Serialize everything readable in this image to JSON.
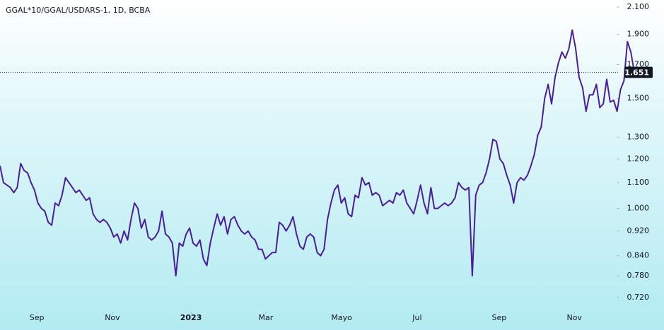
{
  "chart_data": {
    "type": "line",
    "title": "GGAL*10/GGAL/USDARS-1, 1D, BCBA",
    "log_scale": true,
    "grid": false,
    "current_price": 1.651,
    "ylim": [
      0.687,
      2.156
    ],
    "yticks": [
      {
        "value": 2.1,
        "label": "2.100"
      },
      {
        "value": 1.9,
        "label": "1.900"
      },
      {
        "value": 1.7,
        "label": "1.700"
      },
      {
        "value": 1.5,
        "label": "1.500"
      },
      {
        "value": 1.3,
        "label": "1.300"
      },
      {
        "value": 1.2,
        "label": "1.200"
      },
      {
        "value": 1.1,
        "label": "1.100"
      },
      {
        "value": 1.0,
        "label": "1.000"
      },
      {
        "value": 0.92,
        "label": "0.920"
      },
      {
        "value": 0.84,
        "label": "0.840"
      },
      {
        "value": 0.78,
        "label": "0.780"
      },
      {
        "value": 0.72,
        "label": "0.720"
      }
    ],
    "xlim": [
      0,
      176
    ],
    "xticks": [
      {
        "value": 10.7,
        "label": "Sep"
      },
      {
        "value": 32.6,
        "label": "Nov"
      },
      {
        "value": 55.4,
        "label": "2023"
      },
      {
        "value": 77.1,
        "label": "Mar"
      },
      {
        "value": 99.1,
        "label": "Mayo"
      },
      {
        "value": 121,
        "label": "Jul"
      },
      {
        "value": 144.8,
        "label": "Sep"
      },
      {
        "value": 166.6,
        "label": "Nov"
      }
    ],
    "series": [
      {
        "name": "GGAL*10/GGAL/USDARS-1",
        "color": "#4a1d9c",
        "values": [
          1.17,
          1.1,
          1.09,
          1.08,
          1.06,
          1.08,
          1.18,
          1.15,
          1.14,
          1.1,
          1.07,
          1.02,
          1.0,
          0.99,
          0.95,
          0.94,
          1.02,
          1.01,
          1.05,
          1.12,
          1.1,
          1.08,
          1.06,
          1.07,
          1.05,
          1.03,
          1.04,
          0.98,
          0.96,
          0.95,
          0.96,
          0.95,
          0.93,
          0.9,
          0.91,
          0.88,
          0.92,
          0.89,
          0.96,
          1.02,
          1.0,
          0.93,
          0.96,
          0.9,
          0.89,
          0.9,
          0.92,
          0.99,
          0.91,
          0.9,
          0.88,
          0.78,
          0.88,
          0.87,
          0.91,
          0.93,
          0.88,
          0.87,
          0.89,
          0.83,
          0.81,
          0.88,
          0.93,
          0.98,
          0.94,
          0.97,
          0.91,
          0.96,
          0.97,
          0.94,
          0.92,
          0.91,
          0.92,
          0.9,
          0.89,
          0.86,
          0.86,
          0.83,
          0.84,
          0.85,
          0.85,
          0.95,
          0.94,
          0.92,
          0.94,
          0.97,
          0.91,
          0.87,
          0.86,
          0.9,
          0.91,
          0.9,
          0.85,
          0.84,
          0.86,
          0.96,
          1.02,
          1.07,
          1.09,
          1.02,
          1.04,
          0.98,
          0.97,
          1.05,
          1.04,
          1.12,
          1.09,
          1.1,
          1.05,
          1.06,
          1.05,
          1.01,
          1.02,
          1.03,
          1.02,
          1.06,
          1.05,
          1.07,
          1.02,
          1.0,
          0.98,
          1.03,
          1.09,
          1.02,
          0.98,
          1.08,
          1.0,
          1.0,
          1.01,
          1.02,
          1.01,
          1.02,
          1.04,
          1.1,
          1.08,
          1.07,
          1.08,
          0.78,
          1.05,
          1.09,
          1.1,
          1.14,
          1.2,
          1.29,
          1.28,
          1.2,
          1.18,
          1.13,
          1.09,
          1.02,
          1.1,
          1.12,
          1.11,
          1.13,
          1.17,
          1.22,
          1.31,
          1.35,
          1.5,
          1.58,
          1.47,
          1.62,
          1.71,
          1.78,
          1.74,
          1.8,
          1.93,
          1.8,
          1.62,
          1.56,
          1.43,
          1.52,
          1.52,
          1.58,
          1.45,
          1.47,
          1.61,
          1.48,
          1.49,
          1.43,
          1.55,
          1.6,
          1.85,
          1.78,
          1.651
        ]
      }
    ]
  }
}
